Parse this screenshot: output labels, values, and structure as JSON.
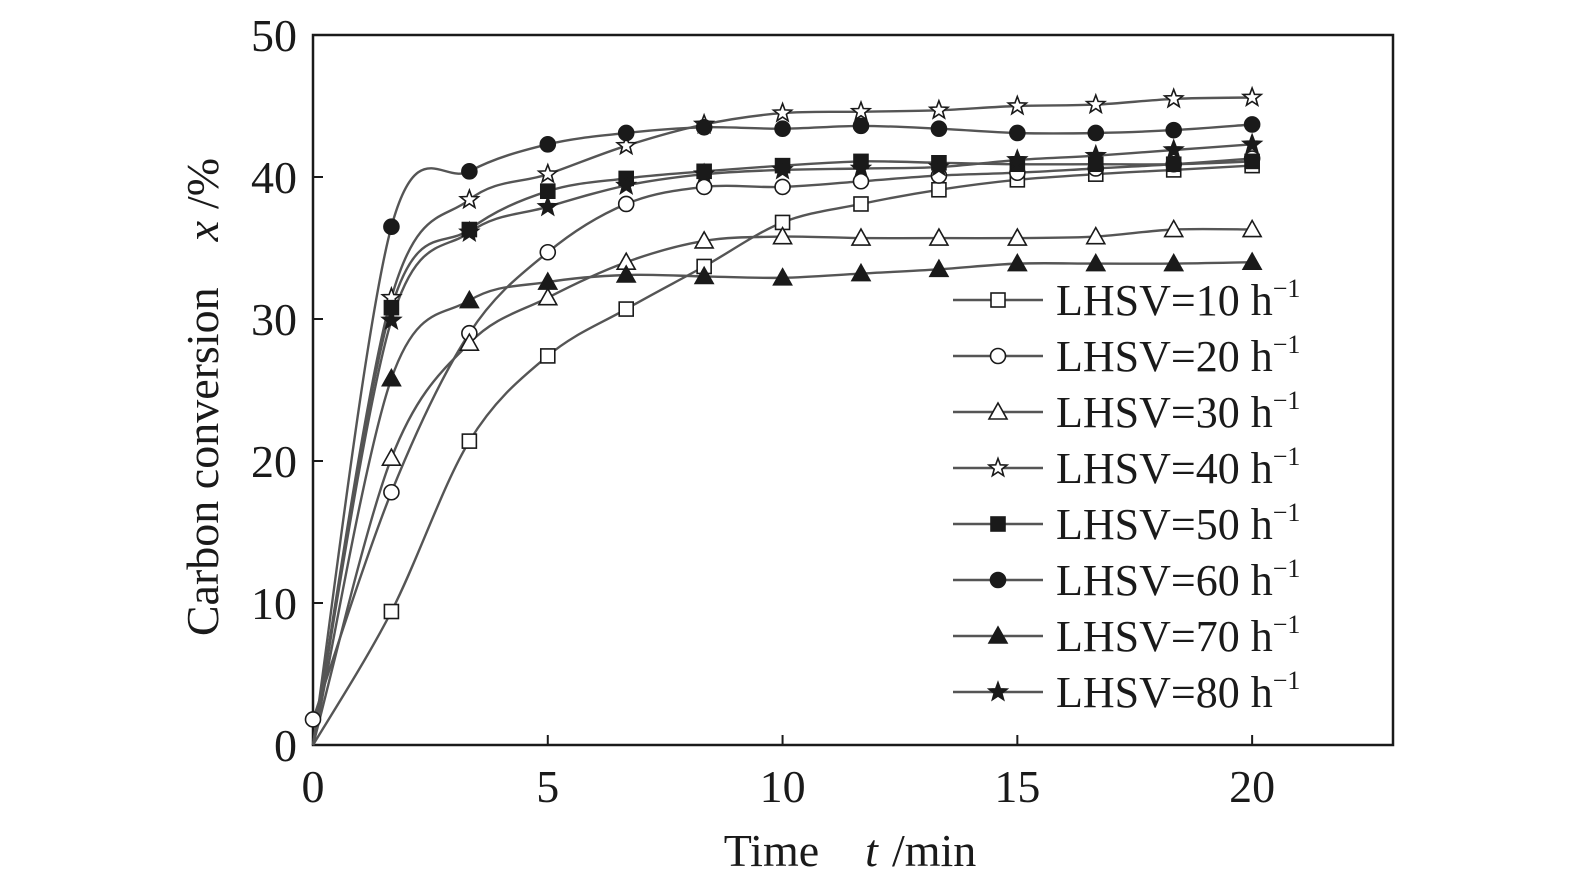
{
  "chart_data": {
    "type": "line",
    "xlabel": {
      "text": "Time",
      "var": "t",
      "unit": "/min"
    },
    "ylabel": {
      "text": "Carbon conversion",
      "var": "x",
      "unit": "/%"
    },
    "xlim": [
      0,
      23
    ],
    "ylim": [
      0,
      50
    ],
    "xticks": [
      0,
      5,
      10,
      15,
      20
    ],
    "yticks": [
      0,
      10,
      20,
      30,
      40,
      50
    ],
    "legend_position": "lower-right inside plot",
    "grid": false,
    "line_color": "#555555",
    "marker_color": "#1a1a1a",
    "series": [
      {
        "name": "LHSV=10 h",
        "sup": "−1",
        "marker": "square-open",
        "x": [
          0,
          1.67,
          3.33,
          5,
          6.67,
          8.33,
          10,
          11.67,
          13.33,
          15,
          16.67,
          18.33,
          20
        ],
        "y": [
          0,
          9.4,
          21.4,
          27.4,
          30.7,
          33.7,
          36.8,
          38.1,
          39.1,
          39.8,
          40.2,
          40.5,
          40.8
        ]
      },
      {
        "name": "LHSV=20 h",
        "sup": "−1",
        "marker": "circle-open",
        "x": [
          0,
          1.67,
          3.33,
          5,
          6.67,
          8.33,
          10,
          11.67,
          13.33,
          15,
          16.67,
          18.33,
          20
        ],
        "y": [
          1.8,
          17.8,
          29.0,
          34.7,
          38.1,
          39.3,
          39.3,
          39.7,
          40.1,
          40.3,
          40.6,
          40.9,
          41.3
        ]
      },
      {
        "name": "LHSV=30 h",
        "sup": "−1",
        "marker": "triangle-open",
        "x": [
          0,
          1.67,
          3.33,
          5,
          6.67,
          8.33,
          10,
          11.67,
          13.33,
          15,
          16.67,
          18.33,
          20
        ],
        "y": [
          0,
          20.2,
          28.3,
          31.5,
          34.0,
          35.5,
          35.8,
          35.7,
          35.7,
          35.7,
          35.8,
          36.3,
          36.3
        ]
      },
      {
        "name": "LHSV=40 h",
        "sup": "−1",
        "marker": "star-open",
        "x": [
          0,
          1.67,
          3.33,
          5,
          6.67,
          8.33,
          10,
          11.67,
          13.33,
          15,
          16.67,
          18.33,
          20
        ],
        "y": [
          0,
          31.5,
          38.4,
          40.2,
          42.2,
          43.7,
          44.5,
          44.6,
          44.7,
          45.0,
          45.1,
          45.5,
          45.6
        ]
      },
      {
        "name": "LHSV=50 h",
        "sup": "−1",
        "marker": "square-filled",
        "x": [
          0,
          1.67,
          3.33,
          5,
          6.67,
          8.33,
          10,
          11.67,
          13.33,
          15,
          16.67,
          18.33,
          20
        ],
        "y": [
          0,
          30.8,
          36.3,
          39.0,
          39.9,
          40.4,
          40.8,
          41.1,
          41.0,
          40.9,
          40.9,
          40.9,
          41.1
        ]
      },
      {
        "name": "LHSV=60 h",
        "sup": "−1",
        "marker": "circle-filled",
        "x": [
          0,
          1.67,
          3.33,
          5,
          6.67,
          8.33,
          10,
          11.67,
          13.33,
          15,
          16.67,
          18.33,
          20
        ],
        "y": [
          0,
          36.5,
          40.4,
          42.3,
          43.1,
          43.5,
          43.4,
          43.6,
          43.4,
          43.1,
          43.1,
          43.3,
          43.7
        ]
      },
      {
        "name": "LHSV=70 h",
        "sup": "−1",
        "marker": "triangle-filled",
        "x": [
          0,
          1.67,
          3.33,
          5,
          6.67,
          8.33,
          10,
          11.67,
          13.33,
          15,
          16.67,
          18.33,
          20
        ],
        "y": [
          0,
          25.8,
          31.3,
          32.6,
          33.1,
          33.0,
          32.9,
          33.2,
          33.5,
          33.9,
          33.9,
          33.9,
          34.0
        ]
      },
      {
        "name": "LHSV=80 h",
        "sup": "−1",
        "marker": "star-filled",
        "x": [
          0,
          1.67,
          3.33,
          5,
          6.67,
          8.33,
          10,
          11.67,
          13.33,
          15,
          16.67,
          18.33,
          20
        ],
        "y": [
          0,
          29.9,
          36.1,
          37.9,
          39.4,
          40.2,
          40.5,
          40.6,
          40.7,
          41.2,
          41.5,
          41.9,
          42.3
        ]
      }
    ]
  }
}
